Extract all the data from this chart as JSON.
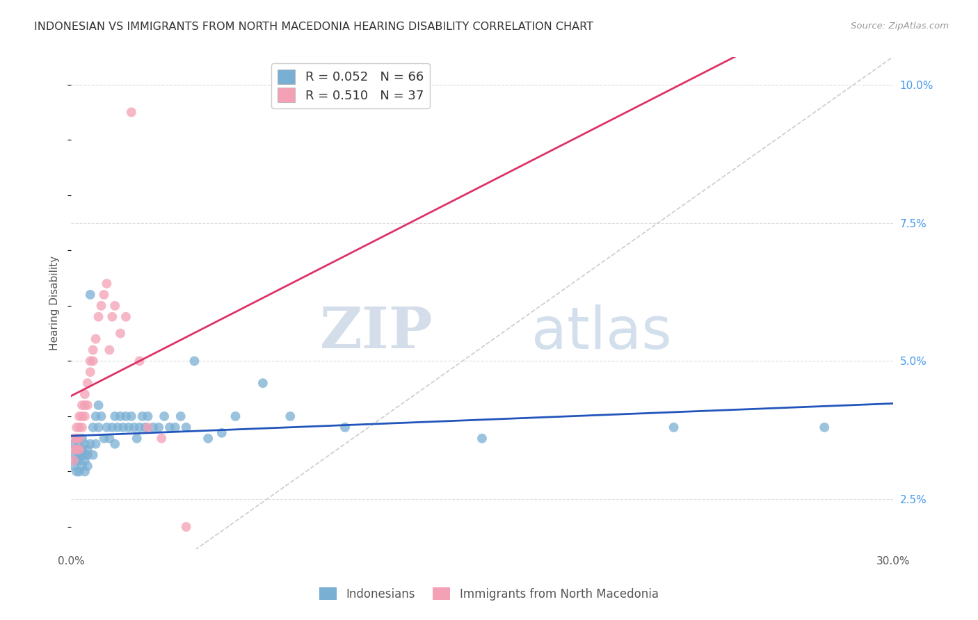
{
  "title": "INDONESIAN VS IMMIGRANTS FROM NORTH MACEDONIA HEARING DISABILITY CORRELATION CHART",
  "source": "Source: ZipAtlas.com",
  "ylabel": "Hearing Disability",
  "xlim": [
    0.0,
    0.3
  ],
  "ylim": [
    0.016,
    0.105
  ],
  "ytick_positions": [
    0.025,
    0.05,
    0.075,
    0.1
  ],
  "ytick_labels": [
    "2.5%",
    "5.0%",
    "7.5%",
    "10.0%"
  ],
  "grid_color": "#dddddd",
  "background_color": "#ffffff",
  "indonesian_color": "#7aafd4",
  "macedonian_color": "#f4a0b5",
  "trend_indonesian_color": "#2255bb",
  "trend_macedonian_color": "#dd3366",
  "trend_diagonal_color": "#cccccc",
  "R_indonesian": 0.052,
  "N_indonesian": 66,
  "R_macedonian": 0.51,
  "N_macedonian": 37,
  "indonesian_x": [
    0.001,
    0.001,
    0.001,
    0.002,
    0.002,
    0.002,
    0.002,
    0.003,
    0.003,
    0.003,
    0.003,
    0.004,
    0.004,
    0.004,
    0.004,
    0.005,
    0.005,
    0.005,
    0.005,
    0.006,
    0.006,
    0.006,
    0.007,
    0.007,
    0.008,
    0.008,
    0.009,
    0.009,
    0.01,
    0.01,
    0.011,
    0.012,
    0.013,
    0.014,
    0.015,
    0.016,
    0.016,
    0.017,
    0.018,
    0.019,
    0.02,
    0.021,
    0.022,
    0.023,
    0.024,
    0.025,
    0.026,
    0.027,
    0.028,
    0.03,
    0.032,
    0.034,
    0.036,
    0.038,
    0.04,
    0.042,
    0.045,
    0.05,
    0.055,
    0.06,
    0.07,
    0.08,
    0.1,
    0.15,
    0.22,
    0.275
  ],
  "indonesian_y": [
    0.035,
    0.033,
    0.031,
    0.034,
    0.032,
    0.03,
    0.036,
    0.035,
    0.033,
    0.032,
    0.03,
    0.034,
    0.033,
    0.031,
    0.036,
    0.035,
    0.033,
    0.032,
    0.03,
    0.034,
    0.033,
    0.031,
    0.062,
    0.035,
    0.038,
    0.033,
    0.04,
    0.035,
    0.042,
    0.038,
    0.04,
    0.036,
    0.038,
    0.036,
    0.038,
    0.04,
    0.035,
    0.038,
    0.04,
    0.038,
    0.04,
    0.038,
    0.04,
    0.038,
    0.036,
    0.038,
    0.04,
    0.038,
    0.04,
    0.038,
    0.038,
    0.04,
    0.038,
    0.038,
    0.04,
    0.038,
    0.05,
    0.036,
    0.037,
    0.04,
    0.046,
    0.04,
    0.038,
    0.036,
    0.038,
    0.038
  ],
  "macedonian_x": [
    0.001,
    0.001,
    0.001,
    0.002,
    0.002,
    0.002,
    0.003,
    0.003,
    0.003,
    0.003,
    0.004,
    0.004,
    0.004,
    0.005,
    0.005,
    0.005,
    0.006,
    0.006,
    0.007,
    0.007,
    0.008,
    0.008,
    0.009,
    0.01,
    0.011,
    0.012,
    0.013,
    0.014,
    0.015,
    0.016,
    0.018,
    0.02,
    0.022,
    0.025,
    0.028,
    0.033,
    0.042
  ],
  "macedonian_y": [
    0.036,
    0.034,
    0.032,
    0.038,
    0.036,
    0.034,
    0.04,
    0.038,
    0.036,
    0.034,
    0.042,
    0.04,
    0.038,
    0.044,
    0.042,
    0.04,
    0.046,
    0.042,
    0.05,
    0.048,
    0.052,
    0.05,
    0.054,
    0.058,
    0.06,
    0.062,
    0.064,
    0.052,
    0.058,
    0.06,
    0.055,
    0.058,
    0.095,
    0.05,
    0.038,
    0.036,
    0.02
  ],
  "watermark_zip": "ZIP",
  "watermark_atlas": "atlas",
  "legend_label_indonesian": "Indonesians",
  "legend_label_macedonian": "Immigrants from North Macedonia",
  "legend_r_indonesian": "R = 0.052",
  "legend_n_indonesian": "N = 66",
  "legend_r_macedonian": "R = 0.510",
  "legend_n_macedonian": "N = 37"
}
